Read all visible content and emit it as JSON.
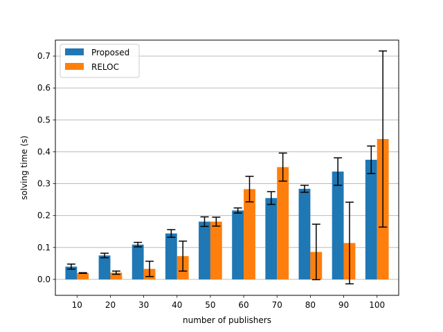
{
  "chart_data": {
    "type": "bar",
    "title": "",
    "xlabel": "number of publishers",
    "ylabel": "solving time (s)",
    "categories": [
      "10",
      "20",
      "30",
      "40",
      "50",
      "60",
      "70",
      "80",
      "90",
      "100"
    ],
    "ylim": [
      -0.05,
      0.75
    ],
    "yticks": [
      0.0,
      0.1,
      0.2,
      0.3,
      0.4,
      0.5,
      0.6,
      0.7
    ],
    "ytick_labels": [
      "0.0",
      "0.1",
      "0.2",
      "0.3",
      "0.4",
      "0.5",
      "0.6",
      "0.7"
    ],
    "grid": "horizontal",
    "legend_position": "top-left",
    "series": [
      {
        "name": "Proposed",
        "color": "#1f77b4",
        "values": [
          0.04,
          0.075,
          0.109,
          0.144,
          0.181,
          0.216,
          0.255,
          0.284,
          0.338,
          0.375
        ],
        "error": [
          0.008,
          0.007,
          0.007,
          0.012,
          0.015,
          0.008,
          0.02,
          0.011,
          0.043,
          0.043
        ]
      },
      {
        "name": "RELOC",
        "color": "#ff7f0e",
        "values": [
          0.02,
          0.021,
          0.033,
          0.073,
          0.181,
          0.283,
          0.352,
          0.086,
          0.114,
          0.44
        ],
        "error": [
          0.001,
          0.005,
          0.024,
          0.047,
          0.014,
          0.04,
          0.044,
          0.087,
          0.128,
          0.276
        ]
      }
    ]
  }
}
